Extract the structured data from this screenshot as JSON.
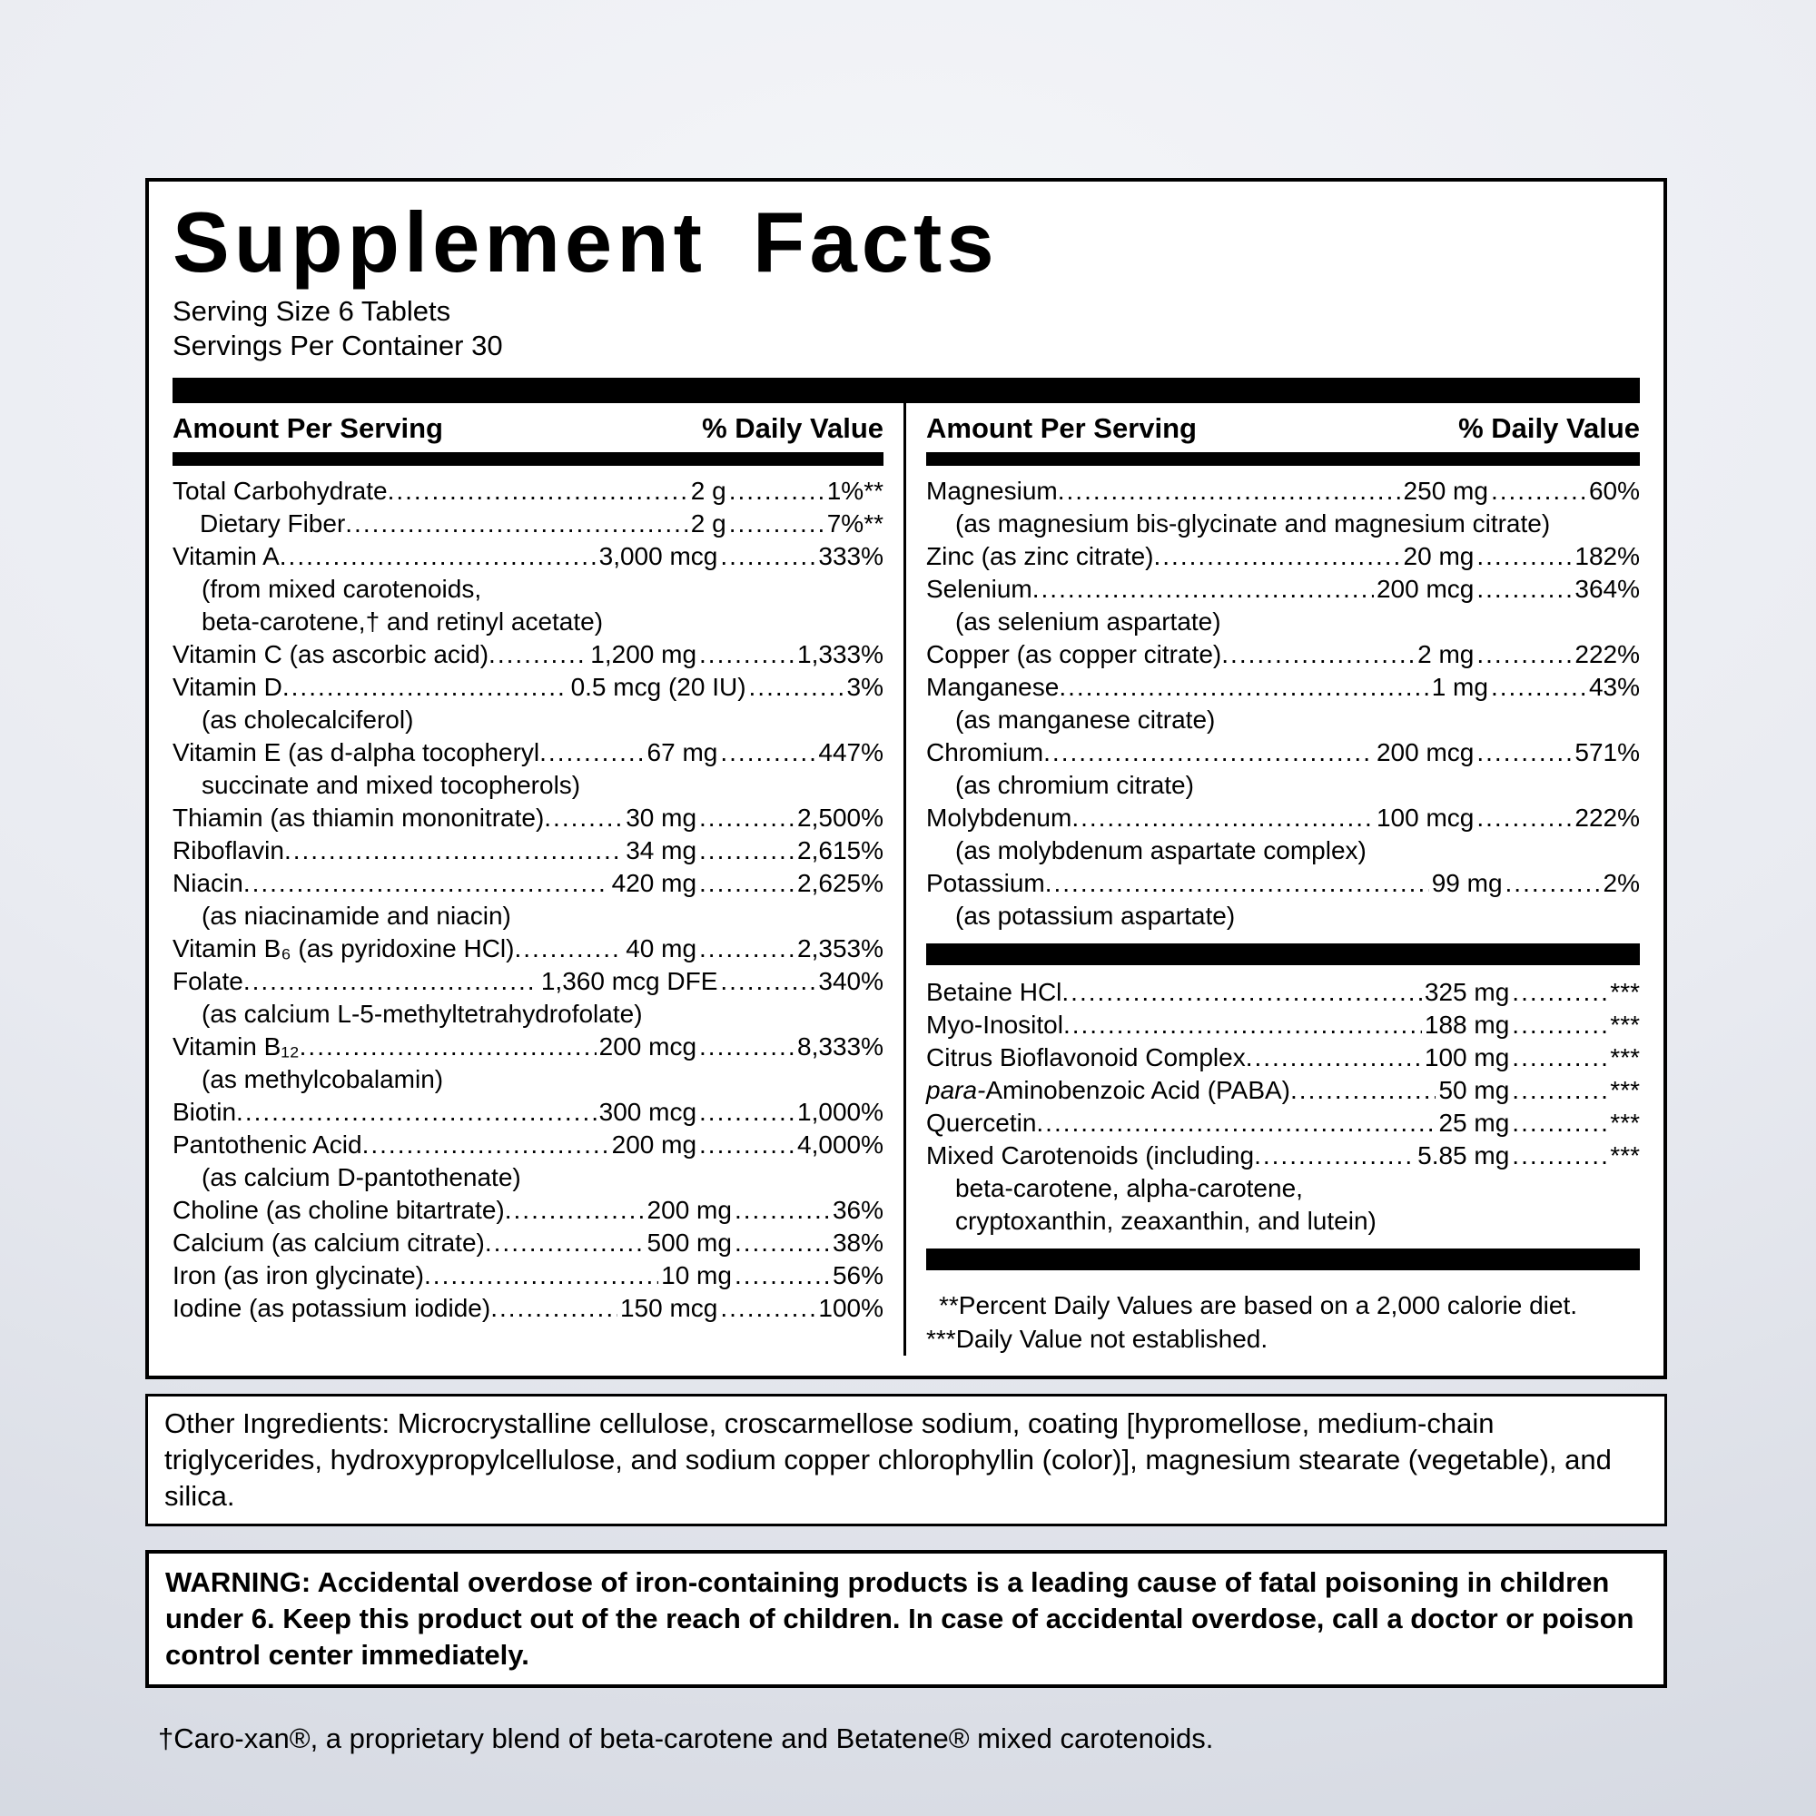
{
  "label": {
    "title": "Supplement Facts",
    "serving_size": "Serving Size 6 Tablets",
    "servings_per_container": "Servings Per Container 30",
    "header_amount": "Amount Per Serving",
    "header_dv": "% Daily Value"
  },
  "left_rows": [
    {
      "name": "Total Carbohydrate",
      "amount": "2 g",
      "dv": "1%**"
    },
    {
      "name": "Dietary Fiber",
      "amount": "2 g",
      "dv": "7%**",
      "indent": true
    },
    {
      "name": "Vitamin A",
      "amount": "3,000 mcg",
      "dv": "333%",
      "sub": [
        "(from mixed carotenoids,",
        "beta-carotene,† and retinyl acetate)"
      ]
    },
    {
      "name": "Vitamin C (as ascorbic acid)",
      "amount": "1,200 mg",
      "dv": "1,333%"
    },
    {
      "name": "Vitamin D",
      "amount": "0.5 mcg (20 IU)",
      "dv": "3%",
      "sub": [
        "(as cholecalciferol)"
      ]
    },
    {
      "name": "Vitamin E (as d-alpha tocopheryl",
      "amount": "67 mg",
      "dv": "447%",
      "sub": [
        "succinate and mixed tocopherols)"
      ]
    },
    {
      "name": "Thiamin (as thiamin mononitrate)",
      "amount": "30 mg",
      "dv": "2,500%"
    },
    {
      "name": "Riboflavin",
      "amount": "34 mg",
      "dv": "2,615%"
    },
    {
      "name": "Niacin",
      "amount": "420 mg",
      "dv": "2,625%",
      "sub": [
        "(as niacinamide and niacin)"
      ]
    },
    {
      "name": "Vitamin B₆ (as pyridoxine HCl)",
      "amount": "40 mg",
      "dv": "2,353%"
    },
    {
      "name": "Folate",
      "amount": "1,360 mcg DFE",
      "dv": "340%",
      "sub": [
        "(as calcium L-5-methyltetrahydrofolate)"
      ]
    },
    {
      "name": "Vitamin B₁₂",
      "amount": "200 mcg",
      "dv": "8,333%",
      "sub": [
        "(as methylcobalamin)"
      ]
    },
    {
      "name": "Biotin",
      "amount": "300 mcg",
      "dv": "1,000%"
    },
    {
      "name": "Pantothenic Acid",
      "amount": "200 mg",
      "dv": "4,000%",
      "sub": [
        "(as calcium D-pantothenate)"
      ]
    },
    {
      "name": "Choline (as choline bitartrate)",
      "amount": "200 mg",
      "dv": "36%"
    },
    {
      "name": "Calcium (as calcium citrate)",
      "amount": "500 mg",
      "dv": "38%"
    },
    {
      "name": "Iron (as iron glycinate)",
      "amount": "10 mg",
      "dv": "56%"
    },
    {
      "name": "Iodine (as potassium iodide)",
      "amount": "150 mcg",
      "dv": "100%"
    }
  ],
  "right_rows_minerals": [
    {
      "name": "Magnesium",
      "amount": "250 mg",
      "dv": "60%",
      "sub": [
        "(as magnesium bis-glycinate and magnesium citrate)"
      ]
    },
    {
      "name": "Zinc (as zinc citrate)",
      "amount": "20 mg",
      "dv": "182%"
    },
    {
      "name": "Selenium",
      "amount": "200 mcg",
      "dv": "364%",
      "sub": [
        "(as selenium aspartate)"
      ]
    },
    {
      "name": "Copper (as copper citrate)",
      "amount": "2 mg",
      "dv": "222%"
    },
    {
      "name": "Manganese",
      "amount": "1 mg",
      "dv": "43%",
      "sub": [
        "(as manganese citrate)"
      ]
    },
    {
      "name": "Chromium",
      "amount": "200 mcg",
      "dv": "571%",
      "sub": [
        "(as chromium citrate)"
      ]
    },
    {
      "name": "Molybdenum",
      "amount": "100 mcg",
      "dv": "222%",
      "sub": [
        "(as molybdenum aspartate complex)"
      ]
    },
    {
      "name": "Potassium",
      "amount": "99 mg",
      "dv": "2%",
      "sub": [
        "(as potassium aspartate)"
      ]
    }
  ],
  "right_rows_other": [
    {
      "name": "Betaine HCl",
      "amount": "325 mg",
      "dv": "***"
    },
    {
      "name": "Myo-Inositol",
      "amount": "188 mg",
      "dv": "***"
    },
    {
      "name": "Citrus Bioflavonoid Complex",
      "amount": "100 mg",
      "dv": "***"
    },
    {
      "name": "Aminobenzoic Acid (PABA)",
      "name_italic_prefix": "para-",
      "amount": "50 mg",
      "dv": "***"
    },
    {
      "name": "Quercetin",
      "amount": "25 mg",
      "dv": "***"
    },
    {
      "name": "Mixed Carotenoids (including",
      "amount": "5.85 mg",
      "dv": "***",
      "sub": [
        "beta-carotene, alpha-carotene,",
        "cryptoxanthin, zeaxanthin, and lutein)"
      ]
    }
  ],
  "dv_footnotes": [
    "**Percent Daily Values are based on a 2,000 calorie diet.",
    "***Daily Value not established."
  ],
  "other_ingredients": "Other Ingredients: Microcrystalline cellulose, croscarmellose sodium, coating [hypromellose, medium-chain triglycerides, hydroxypropylcellulose, and sodium copper chlorophyllin (color)], magnesium stearate (vegetable), and silica.",
  "warning": "WARNING: Accidental overdose of iron-containing products is a leading cause of fatal poisoning in children under 6. Keep this product out of the reach of children. In case of accidental overdose, call a doctor or poison control center immediately.",
  "footnote": "†Caro-xan®, a proprietary blend of beta-carotene and Betatene® mixed carotenoids.",
  "colors": {
    "bar": "#000000",
    "panel_bg": "#ffffff",
    "page_bg_center": "#f5f6f9",
    "page_bg_edge": "#d3d7e0"
  }
}
